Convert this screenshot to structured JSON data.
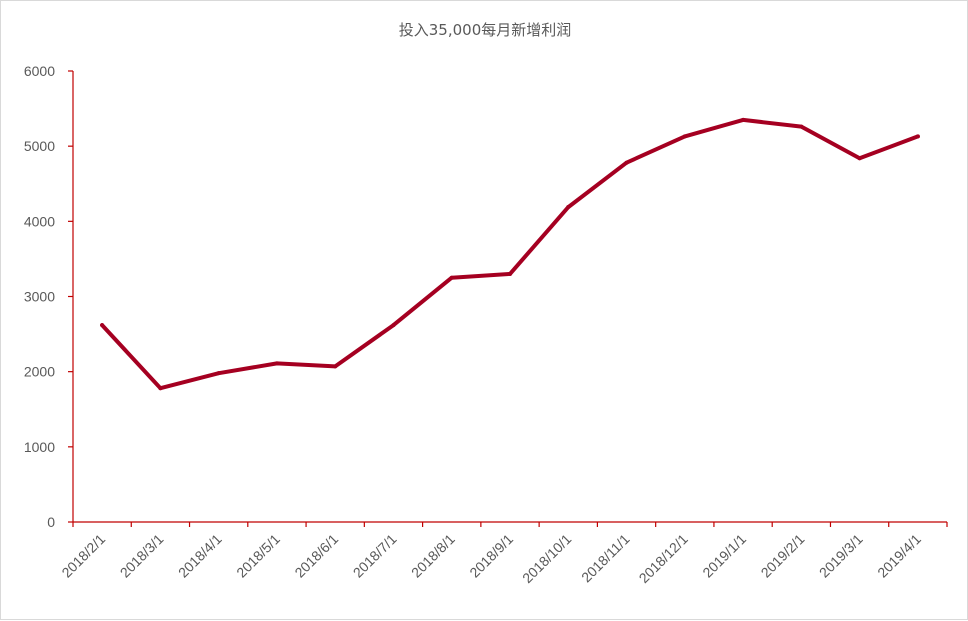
{
  "chart_data": {
    "type": "line",
    "title": "投入35,000每月新增利润",
    "xlabel": "",
    "ylabel": "",
    "ylim": [
      0,
      6000
    ],
    "yticks": [
      0,
      1000,
      2000,
      3000,
      4000,
      5000,
      6000
    ],
    "grid": false,
    "categories": [
      "2018/2/1",
      "2018/3/1",
      "2018/4/1",
      "2018/5/1",
      "2018/6/1",
      "2018/7/1",
      "2018/8/1",
      "2018/9/1",
      "2018/10/1",
      "2018/11/1",
      "2018/12/1",
      "2019/1/1",
      "2019/2/1",
      "2019/3/1",
      "2019/4/1"
    ],
    "series": [
      {
        "values": [
          2620,
          1780,
          1980,
          2110,
          2070,
          2620,
          3250,
          3300,
          4190,
          4780,
          5130,
          5350,
          5260,
          4840,
          5130
        ],
        "color": "#a50021"
      }
    ],
    "axis_color": "#c00000"
  }
}
